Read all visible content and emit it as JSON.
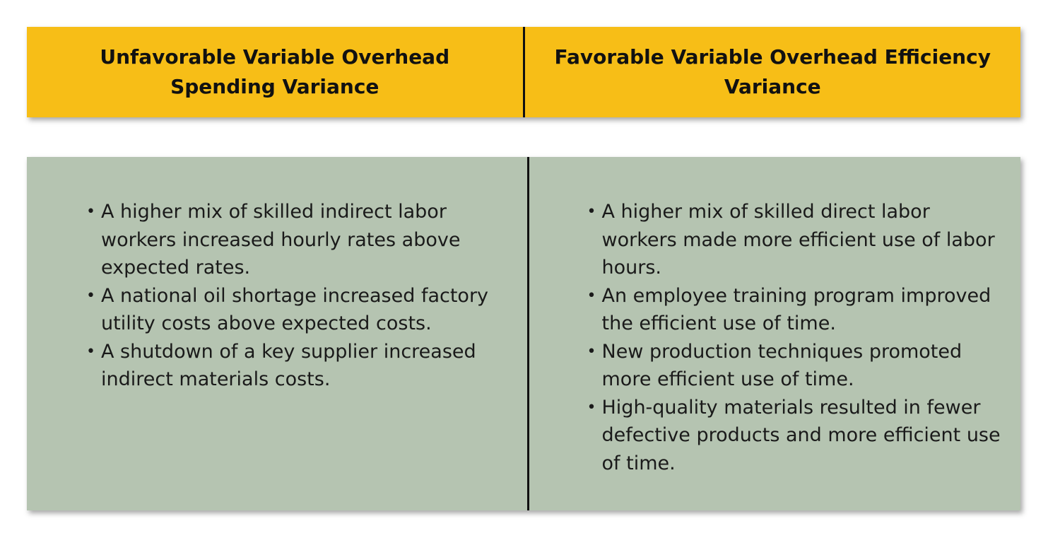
{
  "header": {
    "left_title": "Unfavorable Variable Overhead Spending Variance",
    "right_title": "Favorable Variable Overhead Efficiency Variance"
  },
  "left_column": {
    "items": [
      "A higher mix of skilled indirect labor workers increased hourly rates above expected rates.",
      "A national oil shortage increased factory utility costs above expected costs.",
      "A shutdown of a key supplier increased indirect materials costs."
    ]
  },
  "right_column": {
    "items": [
      "A higher mix of skilled direct labor workers made more efficient use of labor hours.",
      "An employee training program improved the efficient use of time.",
      "New production techniques promoted more efficient use of time.",
      "High-quality materials resulted in fewer defective products and more efficient use of time."
    ]
  },
  "colors": {
    "header_background": "#f7be17",
    "body_background": "#b5c4b1",
    "divider": "#111111"
  }
}
